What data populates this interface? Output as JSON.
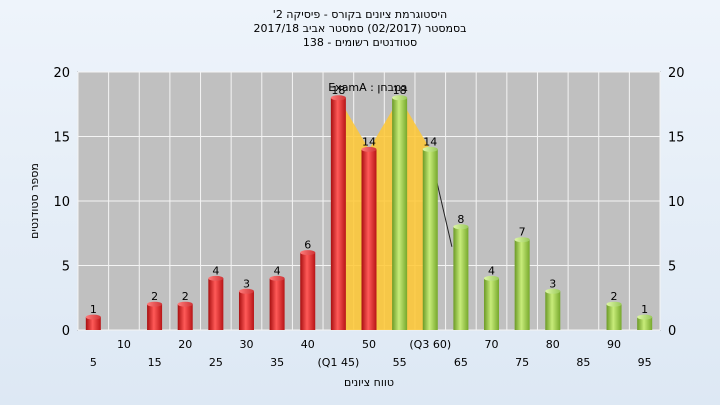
{
  "chart_data": {
    "type": "bar",
    "title_lines": [
      "היסטוגרמת ציונים בקורס - פיסיקה 2'",
      "בסמסטר  (02/2017)  סמסטר אביב 2017/18",
      "סטודנטים רשומים - 138"
    ],
    "ylabel": "מספר סטודנטים",
    "xlabel": "טווח ציונים",
    "annotation": "במבחן : ExamA",
    "ylim": [
      0,
      20
    ],
    "yticks": [
      0,
      5,
      10,
      15,
      20
    ],
    "categories": [
      "5",
      "10",
      "15",
      "20",
      "25",
      "30",
      "35",
      "40",
      "45",
      "50",
      "55",
      "60",
      "65",
      "70",
      "75",
      "80",
      "85",
      "90",
      "95"
    ],
    "category_labels": [
      "5",
      "10",
      "15",
      "20",
      "25",
      "30",
      "35",
      "40",
      "(Q1 45)",
      "50",
      "55",
      "(Q3 60)",
      "65",
      "70",
      "75",
      "80",
      "85",
      "90",
      "95"
    ],
    "values": [
      1,
      0,
      2,
      2,
      4,
      3,
      4,
      6,
      18,
      14,
      18,
      14,
      8,
      4,
      7,
      3,
      0,
      2,
      1
    ],
    "highlight_range_categories": [
      "45",
      "60"
    ],
    "grid": true,
    "colors": {
      "red_bar": "#e8282a",
      "green_bar": "#9acd4a",
      "highlight": "#ffc832",
      "plot_bg": "#c0c0c0"
    },
    "red_up_to": "50"
  }
}
